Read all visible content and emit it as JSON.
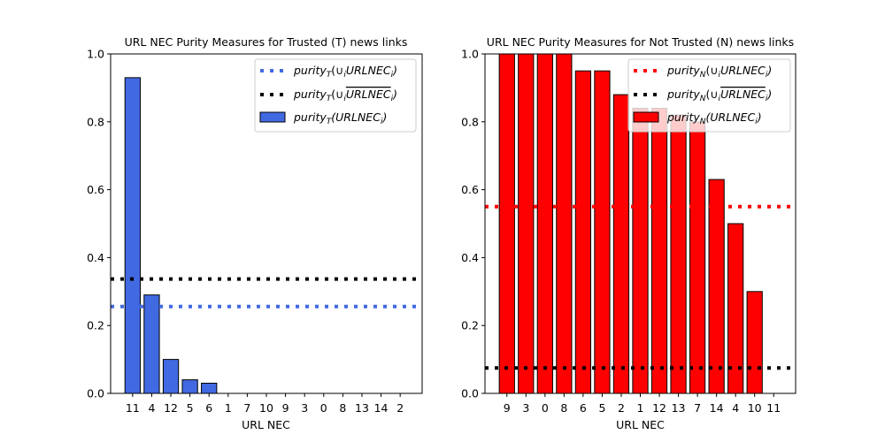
{
  "chart_data": [
    {
      "type": "bar",
      "title": "URL NEC Purity Measures for Trusted (T) news links",
      "xlabel": "URL NEC",
      "ylabel": "",
      "ylim": [
        0,
        1.0
      ],
      "yticks": [
        "0.0",
        "0.2",
        "0.4",
        "0.6",
        "0.8",
        "1.0"
      ],
      "categories": [
        "11",
        "4",
        "12",
        "5",
        "6",
        "1",
        "7",
        "10",
        "9",
        "3",
        "0",
        "8",
        "13",
        "14",
        "2"
      ],
      "values": [
        0.93,
        0.29,
        0.1,
        0.04,
        0.03,
        0,
        0,
        0,
        0,
        0,
        0,
        0,
        0,
        0,
        0
      ],
      "bar_color": "#4169e1",
      "hlines": [
        {
          "value": 0.256,
          "color": "#4169e1"
        },
        {
          "value": 0.337,
          "color": "#000000"
        }
      ],
      "legend": {
        "placement": "top-right",
        "entries": [
          {
            "kind": "line",
            "color": "#4169e1",
            "label": "purityT(∪iURLNECi)"
          },
          {
            "kind": "line",
            "color": "#000000",
            "label": "purityT(∪iURLNECi) (complement)"
          },
          {
            "kind": "bar",
            "color": "#4169e1",
            "label": "purityT(URLNECi)"
          }
        ]
      }
    },
    {
      "type": "bar",
      "title": "URL NEC Purity Measures for Not Trusted (N) news links",
      "xlabel": "URL NEC",
      "ylabel": "",
      "ylim": [
        0,
        1.0
      ],
      "yticks": [
        "0.0",
        "0.2",
        "0.4",
        "0.6",
        "0.8",
        "1.0"
      ],
      "categories": [
        "9",
        "3",
        "0",
        "8",
        "6",
        "5",
        "2",
        "1",
        "12",
        "13",
        "7",
        "14",
        "4",
        "10",
        "11"
      ],
      "values": [
        1.0,
        1.0,
        1.0,
        1.0,
        0.95,
        0.95,
        0.88,
        0.84,
        0.84,
        0.82,
        0.8,
        0.63,
        0.5,
        0.3,
        0
      ],
      "bar_color": "#ff0000",
      "hlines": [
        {
          "value": 0.55,
          "color": "#ff0000"
        },
        {
          "value": 0.075,
          "color": "#000000"
        }
      ],
      "legend": {
        "placement": "top-right",
        "entries": [
          {
            "kind": "line",
            "color": "#ff0000",
            "label": "purityN(∪iURLNECi)"
          },
          {
            "kind": "line",
            "color": "#000000",
            "label": "purityN(∪iURLNECi) (complement)"
          },
          {
            "kind": "bar",
            "color": "#ff0000",
            "label": "purityN(URLNECi)"
          }
        ]
      }
    }
  ]
}
